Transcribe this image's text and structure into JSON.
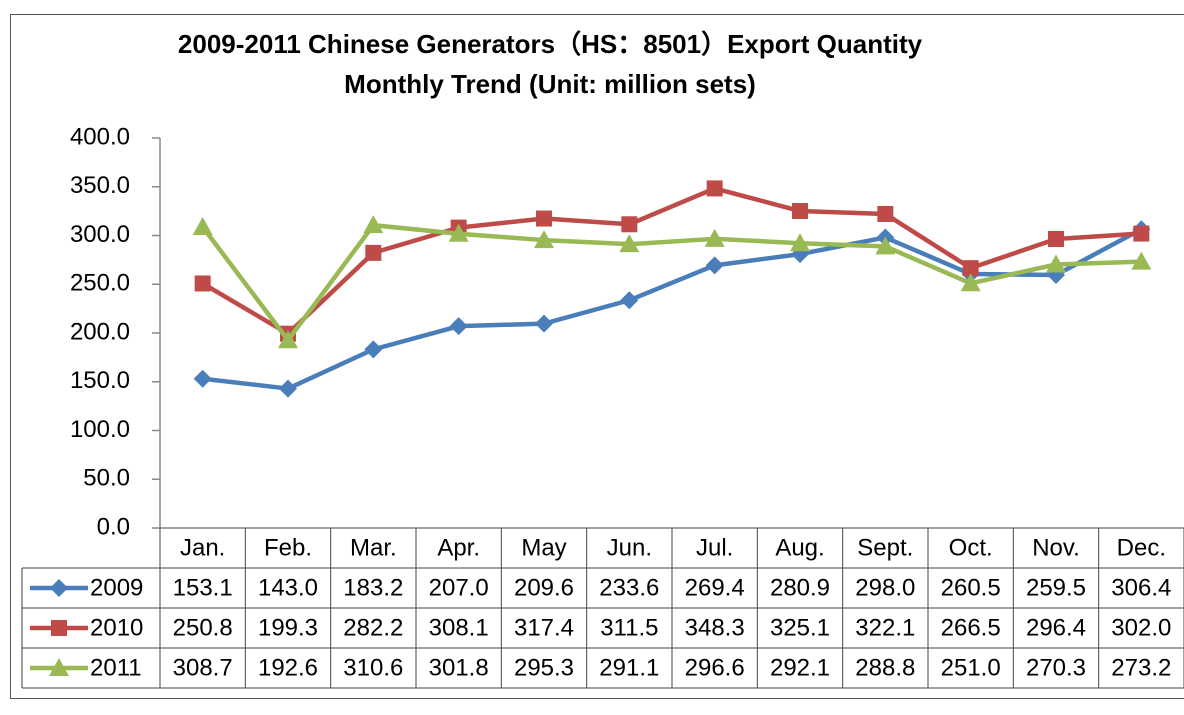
{
  "chart_data": {
    "type": "line",
    "title": [
      "2009-2011 Chinese Generators（HS：8501）Export Quantity",
      "Monthly Trend (Unit: million sets)"
    ],
    "categories": [
      "Jan.",
      "Feb.",
      "Mar.",
      "Apr.",
      "May",
      "Jun.",
      "Jul.",
      "Aug.",
      "Sept.",
      "Oct.",
      "Nov.",
      "Dec."
    ],
    "ylim": [
      0,
      400
    ],
    "yticks": [
      {
        "value": 0,
        "label": "0.0"
      },
      {
        "value": 50,
        "label": "50.0"
      },
      {
        "value": 100,
        "label": "100.0"
      },
      {
        "value": 150,
        "label": "150.0"
      },
      {
        "value": 200,
        "label": "200.0"
      },
      {
        "value": 250,
        "label": "250.0"
      },
      {
        "value": 300,
        "label": "300.0"
      },
      {
        "value": 350,
        "label": "350.0"
      },
      {
        "value": 400,
        "label": "400.0"
      }
    ],
    "grid": false,
    "series": [
      {
        "name": "2009",
        "color": "#4a7ebb",
        "marker": "diamond",
        "values": [
          153.1,
          143.0,
          183.2,
          207.0,
          209.6,
          233.6,
          269.4,
          280.9,
          298.0,
          260.5,
          259.5,
          306.4
        ],
        "value_labels": [
          "153.1",
          "143.0",
          "183.2",
          "207.0",
          "209.6",
          "233.6",
          "269.4",
          "280.9",
          "298.0",
          "260.5",
          "259.5",
          "306.4"
        ]
      },
      {
        "name": "2010",
        "color": "#be4b48",
        "marker": "square",
        "values": [
          250.8,
          199.3,
          282.2,
          308.1,
          317.4,
          311.5,
          348.3,
          325.1,
          322.1,
          266.5,
          296.4,
          302.0
        ],
        "value_labels": [
          "250.8",
          "199.3",
          "282.2",
          "308.1",
          "317.4",
          "311.5",
          "348.3",
          "325.1",
          "322.1",
          "266.5",
          "296.4",
          "302.0"
        ]
      },
      {
        "name": "2011",
        "color": "#98b954",
        "marker": "triangle",
        "values": [
          308.7,
          192.6,
          310.6,
          301.8,
          295.3,
          291.1,
          296.6,
          292.1,
          288.8,
          251.0,
          270.3,
          273.2
        ],
        "value_labels": [
          "308.7",
          "192.6",
          "310.6",
          "301.8",
          "295.3",
          "291.1",
          "296.6",
          "292.1",
          "288.8",
          "251.0",
          "270.3",
          "273.2"
        ]
      }
    ]
  }
}
